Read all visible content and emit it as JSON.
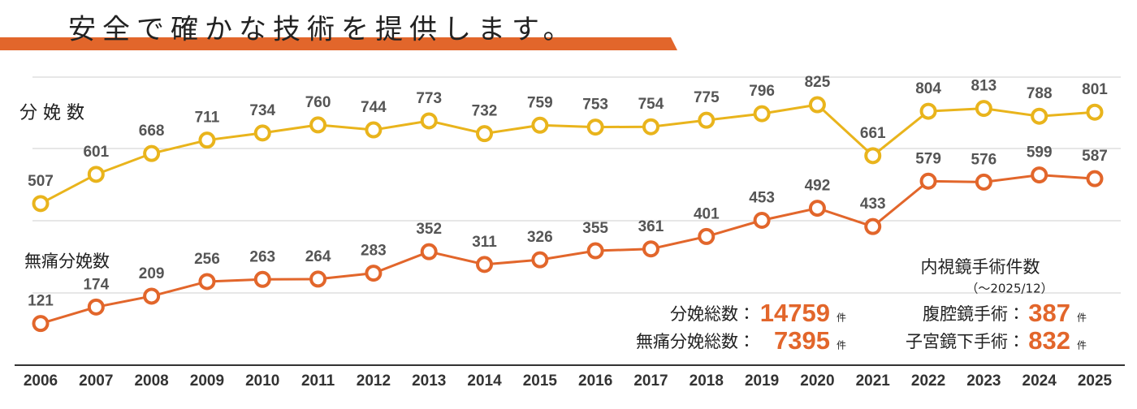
{
  "chart_data": {
    "type": "line",
    "title": "安全で確かな技術を提供します。",
    "categories": [
      "2006",
      "2007",
      "2008",
      "2009",
      "2010",
      "2011",
      "2012",
      "2013",
      "2014",
      "2015",
      "2016",
      "2017",
      "2018",
      "2019",
      "2020",
      "2021",
      "2022",
      "2023",
      "2024",
      "2025"
    ],
    "series": [
      {
        "name": "分 娩 数",
        "color": "#e9b41c",
        "values": [
          507,
          601,
          668,
          711,
          734,
          760,
          744,
          773,
          732,
          759,
          753,
          754,
          775,
          796,
          825,
          661,
          804,
          813,
          788,
          801
        ]
      },
      {
        "name": "無痛分娩数",
        "color": "#e2662b",
        "values": [
          121,
          174,
          209,
          256,
          263,
          264,
          283,
          352,
          311,
          326,
          355,
          361,
          401,
          453,
          492,
          433,
          579,
          576,
          599,
          587
        ]
      }
    ],
    "ylim": [
      0,
      1000
    ]
  },
  "summary": {
    "births": {
      "label": "分娩総数：",
      "value": 14759,
      "unit": "件"
    },
    "painless": {
      "label": "無痛分娩総数：",
      "value": 7395,
      "unit": "件"
    },
    "endoscopy_title": "内視鏡手術件数",
    "endoscopy_period": "（～2025/12）",
    "laparoscopy": {
      "label": "腹腔鏡手術：",
      "value": 387,
      "unit": "件"
    },
    "hysteroscopy": {
      "label": "子宮鏡下手術：",
      "value": 832,
      "unit": "件"
    }
  }
}
